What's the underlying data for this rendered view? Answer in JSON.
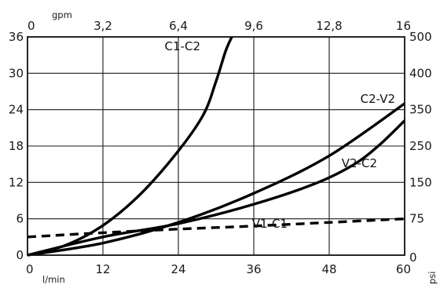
{
  "chart_data": {
    "type": "line",
    "x_bottom": {
      "unit": "l/min",
      "ticks": [
        "0",
        "12",
        "24",
        "36",
        "48",
        "60"
      ],
      "range": [
        0,
        60
      ]
    },
    "x_top": {
      "unit": "gpm",
      "ticks": [
        "0",
        "3,2",
        "6,4",
        "9,6",
        "12,8",
        "16"
      ],
      "range": [
        0,
        16
      ]
    },
    "y_left": {
      "unit": "",
      "ticks": [
        "0",
        "6",
        "12",
        "18",
        "24",
        "30",
        "36"
      ],
      "range": [
        0,
        36
      ]
    },
    "y_right": {
      "unit": "psi",
      "ticks": [
        "0",
        "75",
        "150",
        "250",
        "350",
        "400",
        "500"
      ],
      "range": [
        0,
        500
      ]
    },
    "grid": true,
    "series": [
      {
        "name": "C1-C2",
        "style": "solid",
        "x": [
          0,
          6,
          12,
          18,
          24,
          28,
          30,
          31.5,
          32.5
        ],
        "y": [
          0,
          1.6,
          4.9,
          10.1,
          17.2,
          23.2,
          28.7,
          33.6,
          36
        ]
      },
      {
        "name": "C2-V2",
        "style": "solid",
        "x": [
          0,
          12,
          24,
          36,
          48,
          60
        ],
        "y": [
          0,
          2,
          5.4,
          10.2,
          16.4,
          25
        ]
      },
      {
        "name": "V2-C2",
        "style": "solid",
        "x": [
          0,
          12,
          24,
          36,
          46,
          52,
          56,
          60
        ],
        "y": [
          0,
          3,
          5.2,
          8.4,
          11.9,
          15,
          18.2,
          22.2
        ]
      },
      {
        "name": "V1-C1",
        "style": "dashed",
        "x": [
          0,
          12,
          24,
          36,
          48,
          60
        ],
        "y": [
          3,
          3.7,
          4.3,
          4.8,
          5.4,
          6
        ]
      }
    ]
  }
}
